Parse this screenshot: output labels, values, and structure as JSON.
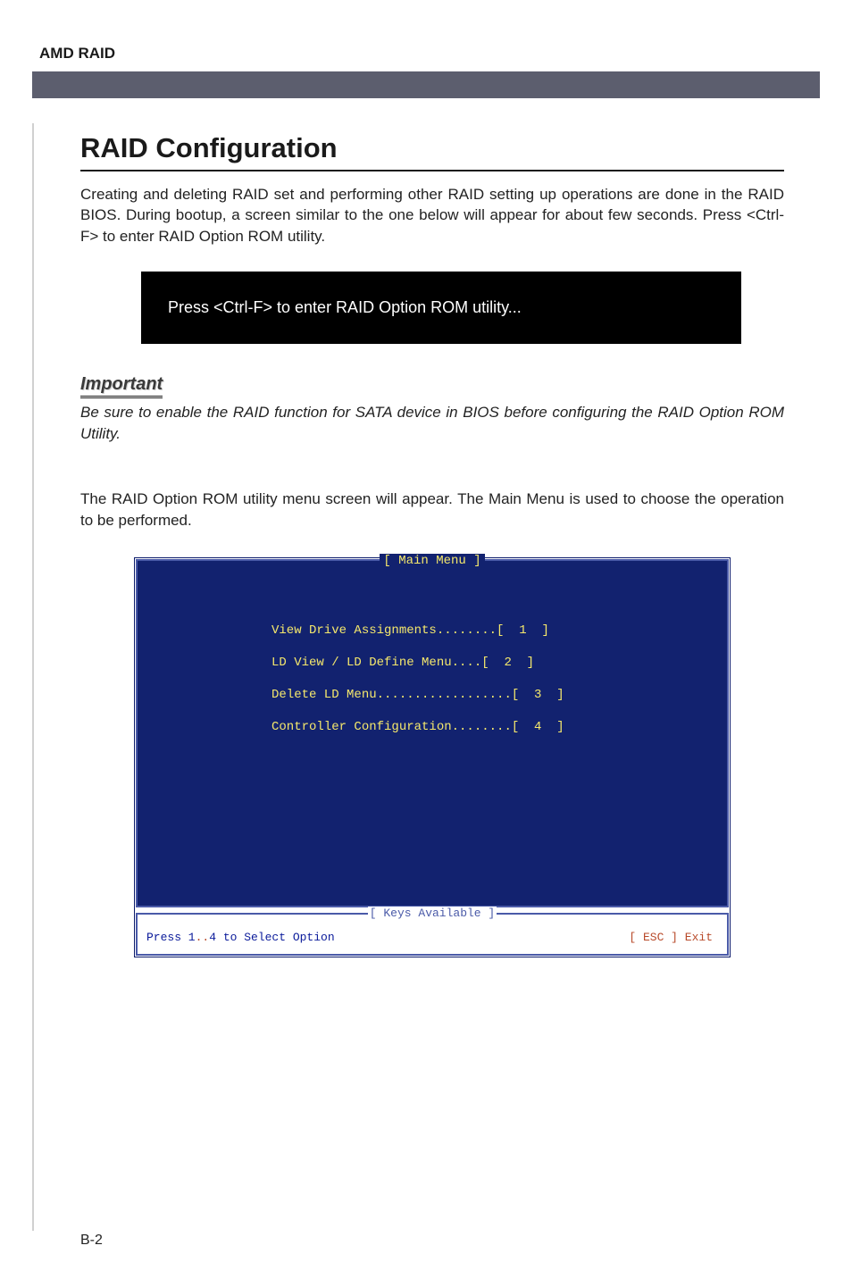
{
  "header": {
    "title": "AMD RAID"
  },
  "section": {
    "title": "RAID Configuration",
    "intro": "Creating and deleting RAID set and performing other RAID setting up operations are done in the RAID BIOS. During bootup, a screen similar to the one below will appear for about few seconds. Press <Ctrl-F> to enter RAID Option ROM utility.",
    "prompt": "Press <Ctrl-F> to enter RAID Option ROM utility...",
    "important_label": "Important",
    "important_text": "Be sure to enable the RAID function for SATA device in BIOS before configuring the RAID Option ROM Utility.",
    "body2": "The RAID Option ROM utility menu screen will appear. The Main Menu is used to choose the operation to be performed."
  },
  "bios": {
    "main_title": "[ Main Menu ]",
    "items": [
      "View Drive Assignments........[  1  ]",
      "LD View / LD Define Menu....[  2  ]",
      "Delete LD Menu..................[  3  ]",
      "Controller Configuration........[  4  ]"
    ],
    "keys_title": "[ Keys Available ]",
    "keys_left_pre": "Press 1",
    "keys_left_dots": "..",
    "keys_left_post": "4 to Select Option",
    "keys_right": "[ ESC ]  Exit"
  },
  "page_number": "B-2",
  "colors": {
    "header_bar": "#5c5e6e",
    "bios_bg": "#12226f",
    "bios_border": "#4a5aa8",
    "bios_text": "#f5e86c",
    "keys_blue": "#0a1a9a",
    "keys_orange": "#b84a2a"
  }
}
